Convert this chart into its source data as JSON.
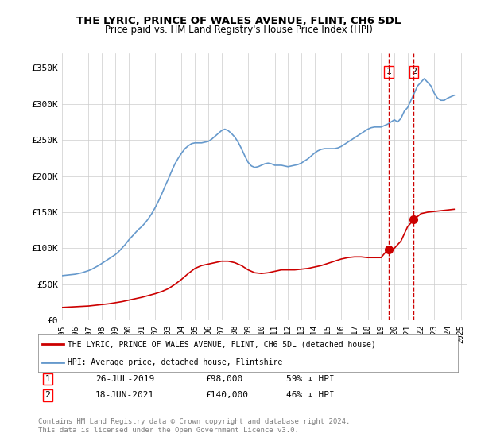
{
  "title": "THE LYRIC, PRINCE OF WALES AVENUE, FLINT, CH6 5DL",
  "subtitle": "Price paid vs. HM Land Registry's House Price Index (HPI)",
  "ylabel_ticks": [
    "£0",
    "£50K",
    "£100K",
    "£150K",
    "£200K",
    "£250K",
    "£300K",
    "£350K"
  ],
  "ylim": [
    0,
    350000
  ],
  "xlim_start": 1995.0,
  "xlim_end": 2025.5,
  "legend_line1": "THE LYRIC, PRINCE OF WALES AVENUE, FLINT, CH6 5DL (detached house)",
  "legend_line2": "HPI: Average price, detached house, Flintshire",
  "transaction1_date": "26-JUL-2019",
  "transaction1_price": "£98,000",
  "transaction1_pct": "59% ↓ HPI",
  "transaction1_year": 2019.57,
  "transaction1_value": 98000,
  "transaction2_date": "18-JUN-2021",
  "transaction2_price": "£140,000",
  "transaction2_pct": "46% ↓ HPI",
  "transaction2_year": 2021.46,
  "transaction2_value": 140000,
  "footer": "Contains HM Land Registry data © Crown copyright and database right 2024.\nThis data is licensed under the Open Government Licence v3.0.",
  "line_color_red": "#cc0000",
  "line_color_blue": "#6699cc",
  "background_color": "#ffffff",
  "grid_color": "#cccccc",
  "hpi_years": [
    1995.0,
    1995.25,
    1995.5,
    1995.75,
    1996.0,
    1996.25,
    1996.5,
    1996.75,
    1997.0,
    1997.25,
    1997.5,
    1997.75,
    1998.0,
    1998.25,
    1998.5,
    1998.75,
    1999.0,
    1999.25,
    1999.5,
    1999.75,
    2000.0,
    2000.25,
    2000.5,
    2000.75,
    2001.0,
    2001.25,
    2001.5,
    2001.75,
    2002.0,
    2002.25,
    2002.5,
    2002.75,
    2003.0,
    2003.25,
    2003.5,
    2003.75,
    2004.0,
    2004.25,
    2004.5,
    2004.75,
    2005.0,
    2005.25,
    2005.5,
    2005.75,
    2006.0,
    2006.25,
    2006.5,
    2006.75,
    2007.0,
    2007.25,
    2007.5,
    2007.75,
    2008.0,
    2008.25,
    2008.5,
    2008.75,
    2009.0,
    2009.25,
    2009.5,
    2009.75,
    2010.0,
    2010.25,
    2010.5,
    2010.75,
    2011.0,
    2011.25,
    2011.5,
    2011.75,
    2012.0,
    2012.25,
    2012.5,
    2012.75,
    2013.0,
    2013.25,
    2013.5,
    2013.75,
    2014.0,
    2014.25,
    2014.5,
    2014.75,
    2015.0,
    2015.25,
    2015.5,
    2015.75,
    2016.0,
    2016.25,
    2016.5,
    2016.75,
    2017.0,
    2017.25,
    2017.5,
    2017.75,
    2018.0,
    2018.25,
    2018.5,
    2018.75,
    2019.0,
    2019.25,
    2019.5,
    2019.75,
    2020.0,
    2020.25,
    2020.5,
    2020.75,
    2021.0,
    2021.25,
    2021.5,
    2021.75,
    2022.0,
    2022.25,
    2022.5,
    2022.75,
    2023.0,
    2023.25,
    2023.5,
    2023.75,
    2024.0,
    2024.25,
    2024.5
  ],
  "hpi_values": [
    62000,
    62500,
    63000,
    63500,
    64000,
    65000,
    66000,
    67500,
    69000,
    71000,
    73500,
    76000,
    79000,
    82000,
    85000,
    88000,
    91000,
    95000,
    100000,
    105000,
    111000,
    116000,
    121000,
    126000,
    130000,
    135000,
    141000,
    148000,
    156000,
    165000,
    175000,
    186000,
    196000,
    207000,
    217000,
    225000,
    232000,
    238000,
    242000,
    245000,
    246000,
    246000,
    246000,
    247000,
    248000,
    251000,
    255000,
    259000,
    263000,
    265000,
    263000,
    259000,
    254000,
    247000,
    238000,
    228000,
    219000,
    214000,
    212000,
    213000,
    215000,
    217000,
    218000,
    217000,
    215000,
    215000,
    215000,
    214000,
    213000,
    214000,
    215000,
    216000,
    218000,
    221000,
    224000,
    228000,
    232000,
    235000,
    237000,
    238000,
    238000,
    238000,
    238000,
    239000,
    241000,
    244000,
    247000,
    250000,
    253000,
    256000,
    259000,
    262000,
    265000,
    267000,
    268000,
    268000,
    268000,
    270000,
    272000,
    275000,
    278000,
    275000,
    280000,
    290000,
    295000,
    305000,
    315000,
    325000,
    330000,
    335000,
    330000,
    325000,
    315000,
    308000,
    305000,
    305000,
    308000,
    310000,
    312000
  ],
  "red_years": [
    1995.0,
    1995.5,
    1996.0,
    1996.5,
    1997.0,
    1997.5,
    1998.0,
    1998.5,
    1999.0,
    1999.5,
    2000.0,
    2000.5,
    2001.0,
    2001.5,
    2002.0,
    2002.5,
    2003.0,
    2003.5,
    2004.0,
    2004.5,
    2005.0,
    2005.5,
    2006.0,
    2006.5,
    2007.0,
    2007.5,
    2008.0,
    2008.5,
    2009.0,
    2009.5,
    2010.0,
    2010.5,
    2011.0,
    2011.5,
    2012.0,
    2012.5,
    2013.0,
    2013.5,
    2014.0,
    2014.5,
    2015.0,
    2015.5,
    2016.0,
    2016.5,
    2017.0,
    2017.5,
    2018.0,
    2018.5,
    2019.0,
    2019.5,
    2020.0,
    2020.5,
    2021.0,
    2021.5,
    2022.0,
    2022.5,
    2023.0,
    2023.5,
    2024.0,
    2024.5
  ],
  "red_values": [
    18000,
    18500,
    19000,
    19500,
    20000,
    21000,
    22000,
    23000,
    24500,
    26000,
    28000,
    30000,
    32000,
    34500,
    37000,
    40000,
    44000,
    50000,
    57000,
    65000,
    72000,
    76000,
    78000,
    80000,
    82000,
    82000,
    80000,
    76000,
    70000,
    66000,
    65000,
    66000,
    68000,
    70000,
    70000,
    70000,
    71000,
    72000,
    74000,
    76000,
    79000,
    82000,
    85000,
    87000,
    88000,
    88000,
    87000,
    87000,
    87000,
    98000,
    100000,
    110000,
    130000,
    140000,
    148000,
    150000,
    151000,
    152000,
    153000,
    154000
  ]
}
